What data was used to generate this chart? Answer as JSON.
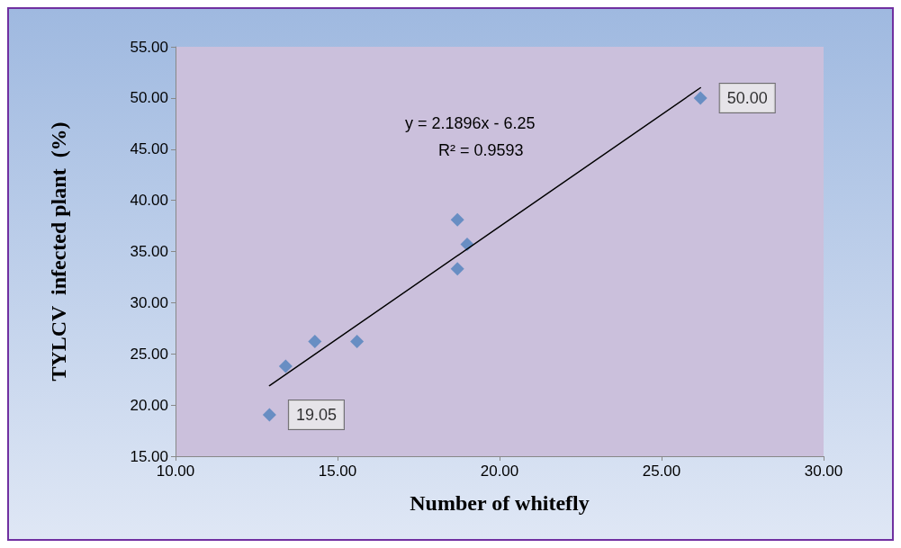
{
  "chart_data": {
    "type": "scatter",
    "xlabel": "Number of whitefly",
    "ylabel": "TYLCV  infected plant  (%)",
    "xlim": [
      10,
      30
    ],
    "xticks": [
      {
        "value": 10,
        "label": "10.00"
      },
      {
        "value": 15,
        "label": "15.00"
      },
      {
        "value": 20,
        "label": "20.00"
      },
      {
        "value": 25,
        "label": "25.00"
      },
      {
        "value": 30,
        "label": "30.00"
      }
    ],
    "ylim": [
      15,
      55
    ],
    "yticks": [
      {
        "value": 15,
        "label": "15.00"
      },
      {
        "value": 20,
        "label": "20.00"
      },
      {
        "value": 25,
        "label": "25.00"
      },
      {
        "value": 30,
        "label": "30.00"
      },
      {
        "value": 35,
        "label": "35.00"
      },
      {
        "value": 40,
        "label": "40.00"
      },
      {
        "value": 45,
        "label": "45.00"
      },
      {
        "value": 50,
        "label": "50.00"
      },
      {
        "value": 55,
        "label": "55.00"
      }
    ],
    "grid": false,
    "series": [
      {
        "color": "#4f81bd",
        "marker": "diamond",
        "x": [
          12.9,
          13.4,
          14.3,
          15.6,
          18.7,
          18.7,
          19.0,
          26.2
        ],
        "values": [
          19.05,
          23.8,
          26.2,
          26.2,
          38.1,
          33.3,
          35.7,
          50.0
        ],
        "value_labels": [
          "19.05",
          null,
          null,
          null,
          null,
          null,
          null,
          "50.00"
        ]
      },
      {
        "type": "line",
        "color": "#000000",
        "marker": "none",
        "line_style": "solid",
        "x": [
          12.9,
          26.2
        ],
        "values": [
          21.9,
          51.0
        ]
      }
    ],
    "annotations": [
      "y = 2.1896x - 6.25",
      "R² = 0.9593"
    ]
  }
}
